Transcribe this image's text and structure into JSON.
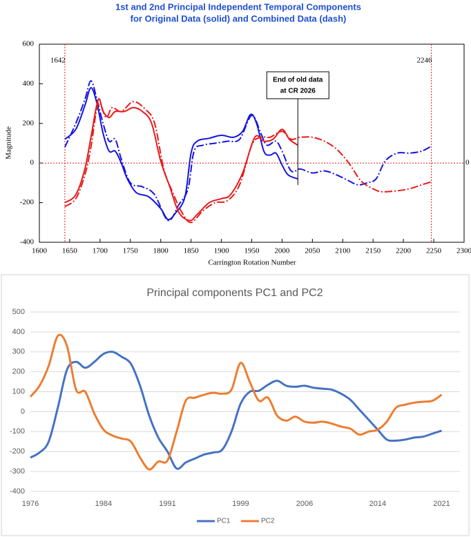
{
  "chart_data": [
    {
      "type": "line",
      "title": [
        "1st and 2nd Principal Independent Temporal Components",
        "for Original Data (solid) and Combined Data (dash)"
      ],
      "x_label": "Carrington Rotation Number",
      "y_label": "Magnitude",
      "xlim": [
        1600,
        2300
      ],
      "xticks": [
        1600,
        1650,
        1700,
        1750,
        1800,
        1850,
        1900,
        1950,
        2000,
        2050,
        2100,
        2150,
        2200,
        2250,
        2300
      ],
      "ylim": [
        -400,
        600
      ],
      "yticks": [
        -400,
        -200,
        0,
        200,
        400,
        600
      ],
      "vlines": [
        1642,
        2246
      ],
      "hlines": [
        0
      ],
      "cutoff": 2026,
      "cutoff_label": [
        "End of old data",
        "at CR 2026"
      ],
      "frame": true,
      "series": [
        {
          "color": "#1414e0",
          "style": "solid",
          "x": [
            1642,
            1660,
            1675,
            1685,
            1695,
            1705,
            1715,
            1725,
            1735,
            1745,
            1760,
            1780,
            1800,
            1812,
            1825,
            1840,
            1850,
            1860,
            1880,
            1900,
            1920,
            1935,
            1948,
            1958,
            1970,
            1980,
            1990,
            2000,
            2010,
            2026
          ],
          "values": [
            120,
            170,
            290,
            380,
            300,
            150,
            60,
            60,
            0,
            -80,
            -150,
            -170,
            -230,
            -285,
            -250,
            -170,
            50,
            110,
            125,
            140,
            130,
            160,
            245,
            200,
            60,
            40,
            50,
            -10,
            -60,
            -80
          ]
        },
        {
          "color": "#1414e0",
          "style": "dash",
          "x": [
            1642,
            1660,
            1675,
            1685,
            1695,
            1705,
            1715,
            1725,
            1735,
            1750,
            1770,
            1790,
            1812,
            1830,
            1845,
            1855,
            1870,
            1890,
            1910,
            1930,
            1950,
            1965,
            1975,
            1990,
            2000,
            2015,
            2030,
            2050,
            2070,
            2090,
            2110,
            2125,
            2140,
            2155,
            2170,
            2190,
            2210,
            2230,
            2246
          ],
          "values": [
            80,
            200,
            320,
            415,
            320,
            200,
            110,
            120,
            20,
            -100,
            -120,
            -160,
            -290,
            -210,
            -130,
            60,
            90,
            100,
            110,
            120,
            240,
            150,
            90,
            110,
            60,
            -40,
            -30,
            -50,
            -40,
            -60,
            -90,
            -110,
            -100,
            -80,
            10,
            50,
            50,
            60,
            85
          ]
        },
        {
          "color": "#e81919",
          "style": "solid",
          "x": [
            1642,
            1660,
            1675,
            1685,
            1697,
            1705,
            1715,
            1725,
            1740,
            1755,
            1770,
            1785,
            1800,
            1815,
            1830,
            1848,
            1860,
            1880,
            1900,
            1915,
            1935,
            1955,
            1970,
            1985,
            2000,
            2012,
            2026
          ],
          "values": [
            -200,
            -160,
            -30,
            130,
            320,
            260,
            230,
            260,
            260,
            280,
            260,
            200,
            10,
            -120,
            -250,
            -290,
            -260,
            -200,
            -180,
            -160,
            -50,
            130,
            110,
            120,
            170,
            120,
            90
          ]
        },
        {
          "color": "#e81919",
          "style": "dash",
          "x": [
            1642,
            1660,
            1675,
            1685,
            1697,
            1710,
            1720,
            1735,
            1755,
            1775,
            1790,
            1805,
            1820,
            1835,
            1850,
            1870,
            1890,
            1910,
            1930,
            1950,
            1965,
            1980,
            2000,
            2015,
            2030,
            2050,
            2070,
            2090,
            2110,
            2130,
            2150,
            2165,
            2190,
            2210,
            2230,
            2246
          ],
          "values": [
            -220,
            -180,
            -60,
            80,
            300,
            230,
            280,
            260,
            310,
            270,
            200,
            -30,
            -150,
            -250,
            -300,
            -240,
            -200,
            -190,
            -110,
            90,
            130,
            130,
            160,
            120,
            130,
            130,
            110,
            70,
            0,
            -90,
            -130,
            -145,
            -140,
            -130,
            -110,
            -95
          ]
        }
      ]
    },
    {
      "type": "line",
      "title": "Principal components PC1 and PC2",
      "xlim": [
        1976,
        2023
      ],
      "xticks": [
        1976,
        1984,
        1991,
        1999,
        2006,
        2014,
        2021
      ],
      "ylim": [
        -400,
        500
      ],
      "yticks": [
        -400,
        -300,
        -200,
        -100,
        0,
        100,
        200,
        300,
        400,
        500
      ],
      "grid": true,
      "legend": "bottom",
      "x": [
        1976,
        1977,
        1978,
        1979,
        1980,
        1981,
        1982,
        1983,
        1984,
        1985,
        1986,
        1987,
        1988,
        1989,
        1990,
        1991,
        1992,
        1993,
        1994,
        1995,
        1996,
        1997,
        1998,
        1999,
        2000,
        2001,
        2002,
        2003,
        2004,
        2005,
        2006,
        2007,
        2008,
        2009,
        2010,
        2011,
        2012,
        2013,
        2014,
        2015,
        2016,
        2017,
        2018,
        2019,
        2020,
        2021
      ],
      "series": [
        {
          "name": "PC1",
          "color": "#4472c4",
          "values": [
            -230,
            -205,
            -150,
            20,
            210,
            250,
            220,
            250,
            290,
            300,
            275,
            240,
            130,
            -20,
            -130,
            -200,
            -285,
            -255,
            -235,
            -215,
            -205,
            -190,
            -100,
            40,
            100,
            105,
            135,
            155,
            130,
            125,
            130,
            120,
            115,
            110,
            90,
            60,
            10,
            -40,
            -90,
            -140,
            -145,
            -140,
            -130,
            -125,
            -110,
            -95
          ]
        },
        {
          "name": "PC2",
          "color": "#ed7d31",
          "values": [
            75,
            130,
            230,
            380,
            330,
            110,
            100,
            -10,
            -90,
            -120,
            -135,
            -150,
            -230,
            -290,
            -250,
            -245,
            -100,
            55,
            70,
            85,
            95,
            90,
            110,
            245,
            150,
            55,
            70,
            -20,
            -45,
            -25,
            -50,
            -55,
            -50,
            -60,
            -75,
            -85,
            -115,
            -100,
            -90,
            -50,
            20,
            35,
            45,
            50,
            55,
            85
          ]
        }
      ]
    }
  ]
}
